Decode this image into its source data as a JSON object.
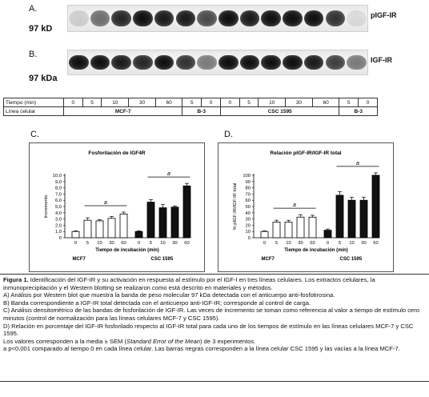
{
  "panel_a": {
    "letter": "A.",
    "marker": "97 kD",
    "label": "pIGF-IR",
    "bands": [
      0.15,
      0.55,
      0.85,
      0.95,
      0.9,
      0.9,
      0.7,
      0.95,
      0.9,
      0.95,
      0.95,
      0.95,
      0.8,
      0.1
    ]
  },
  "panel_b": {
    "letter": "B.",
    "marker": "97 kDa",
    "label": "IGF-IR",
    "bands": [
      0.95,
      0.95,
      0.9,
      0.85,
      0.95,
      0.8,
      0.5,
      0.95,
      0.95,
      0.95,
      0.95,
      0.9,
      0.75,
      0.5
    ]
  },
  "conditions": {
    "time_label": "Tiempo (min)",
    "times": [
      "0",
      "5",
      "10",
      "30",
      "60",
      "5",
      "0",
      "0",
      "5",
      "10",
      "30",
      "60",
      "5",
      "0"
    ],
    "line_label": "Línea celular",
    "groups": [
      {
        "name": "MCF-7",
        "span": 5
      },
      {
        "name": "B-3",
        "span": 2
      },
      {
        "name": "CSC 1595",
        "span": 5
      },
      {
        "name": "B-3",
        "span": 2
      }
    ]
  },
  "panel_c": {
    "letter": "C."
  },
  "panel_d": {
    "letter": "D."
  },
  "chart_data": [
    {
      "type": "bar",
      "title": "Fosforilación de IGF4R",
      "ylabel": "Incremento",
      "xlabel": "Tiempo de incubación (min)",
      "categories": [
        "0",
        "5",
        "10",
        "30",
        "60",
        "0",
        "5",
        "10",
        "30",
        "60"
      ],
      "groups": [
        "MCF7",
        "CSC 1595"
      ],
      "ylim": [
        0,
        10
      ],
      "yticks": [
        "0",
        "1,0",
        "2,0",
        "3,0",
        "4,0",
        "5,0",
        "6,0",
        "7,0",
        "8,0",
        "9,0",
        "10,0"
      ],
      "series": [
        {
          "fill": "hollow",
          "values": [
            1.0,
            2.8,
            2.7,
            3.1,
            3.8,
            null,
            null,
            null,
            null,
            null
          ],
          "errors": [
            0.1,
            0.4,
            0.2,
            0.3,
            0.3,
            null,
            null,
            null,
            null,
            null
          ]
        },
        {
          "fill": "black",
          "values": [
            null,
            null,
            null,
            null,
            null,
            1.0,
            5.7,
            4.8,
            4.9,
            8.3
          ],
          "errors": [
            null,
            null,
            null,
            null,
            null,
            0.1,
            0.4,
            0.5,
            0.2,
            0.4
          ]
        }
      ],
      "significance": [
        "a",
        "a"
      ]
    },
    {
      "type": "bar",
      "title": "Relación pIGF-IR/IGF-IR total",
      "ylabel": "% pIGF-IR/IGF-IR total",
      "xlabel": "Tiempo de incubación (min)",
      "categories": [
        "0",
        "5",
        "10",
        "30",
        "60",
        "0",
        "5",
        "10",
        "30",
        "60"
      ],
      "groups": [
        "MCF7",
        "CSC 1595"
      ],
      "ylim": [
        0,
        100
      ],
      "yticks": [
        "0",
        "10",
        "20",
        "30",
        "40",
        "50",
        "60",
        "70",
        "80",
        "90",
        "100"
      ],
      "series": [
        {
          "fill": "hollow",
          "values": [
            10,
            25,
            25,
            33,
            33,
            null,
            null,
            null,
            null,
            null
          ],
          "errors": [
            1,
            3,
            3,
            4,
            3,
            null,
            null,
            null,
            null,
            null
          ]
        },
        {
          "fill": "black",
          "values": [
            null,
            null,
            null,
            null,
            null,
            12,
            68,
            60,
            60,
            100
          ],
          "errors": [
            null,
            null,
            null,
            null,
            null,
            2,
            6,
            5,
            5,
            4
          ]
        }
      ],
      "significance": [
        "a",
        "a"
      ]
    }
  ],
  "caption": {
    "fig_label": "Figura 1.",
    "intro": " Identificación del IGF-IR y su activación en respuesta al estímulo por el IGF-I en tres líneas celulares. Los extractos celulares, la inmunoprecipitación y el Western blotting se realizaron como está descrito en materiales y métodos.",
    "line_a": "A) Análisis por Western blot que muestra la banda de peso molecular 97 kDa detectada con el anticuerpo anti-fosfotirosina.",
    "line_b": "B) Banda correspondiente a IGF-IR total detectada con el anticuerpo anti-IGF-IR; corresponde al control de carga.",
    "line_c": "C) Análisis densitométrico de las bandas de fosforilación de IGF-IR. Las veces de incremento se toman como referencia al valor a tiempo de estímulo cero minutos (control de normalización para las líneas celulares MCF-7 y CSC 1595).",
    "line_d": "D) Relación en porcentaje del IGF-IR fosforilado respecto al IGF-IR total para cada uno de los tiempos de estímulo en las líneas celulares MCF-7 y CSC 1595.",
    "sem_pre": "Los valores corresponden a la media ± SEM (",
    "sem_italic": "Standard Error of the Mean",
    "sem_post": ") de 3 experimentos.",
    "footnote": "a p<0,001 comparado al tiempo 0 en cada línea celular. Las barras negras corresponden a la línea celular CSC 1595 y las vacías a la línea MCF-7."
  }
}
